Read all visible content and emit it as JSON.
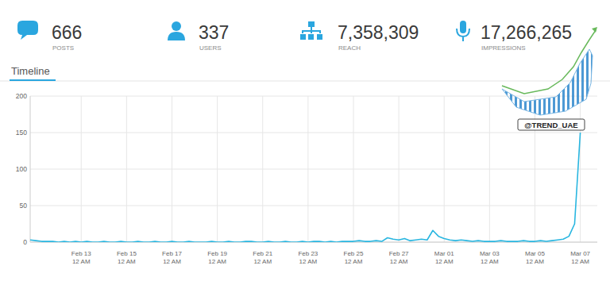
{
  "header": {
    "stats": [
      {
        "value": "666",
        "label": "POSTS"
      },
      {
        "value": "337",
        "label": "USERS"
      },
      {
        "value": "7,358,309",
        "label": "REACH"
      },
      {
        "value": "17,266,265",
        "label": "IMPRESSIONS"
      }
    ],
    "tab": "Timeline"
  },
  "chart_data": {
    "type": "line",
    "color": "#29b6e0",
    "categories": [
      null,
      null,
      null,
      null,
      null,
      null,
      null,
      null,
      null,
      "Feb 13 12 AM",
      null,
      null,
      null,
      null,
      null,
      null,
      null,
      "Feb 15 12 AM",
      null,
      null,
      null,
      null,
      null,
      null,
      null,
      "Feb 17 12 AM",
      null,
      null,
      null,
      null,
      null,
      null,
      null,
      "Feb 19 12 AM",
      null,
      null,
      null,
      null,
      null,
      null,
      null,
      "Feb 21 12 AM",
      null,
      null,
      null,
      null,
      null,
      null,
      null,
      "Feb 23 12 AM",
      null,
      null,
      null,
      null,
      null,
      null,
      null,
      "Feb 25 12 AM",
      null,
      null,
      null,
      null,
      null,
      null,
      null,
      "Feb 27 12 AM",
      null,
      null,
      null,
      null,
      null,
      null,
      null,
      "Mar 01 12 AM",
      null,
      null,
      null,
      null,
      null,
      null,
      null,
      "Mar 03 12 AM",
      null,
      null,
      null,
      null,
      null,
      null,
      null,
      "Mar 05 12 AM",
      null,
      null,
      null,
      null,
      null,
      null,
      null,
      "Mar 07 12 AM",
      null,
      null,
      null
    ],
    "values": [
      3,
      2,
      1,
      1,
      1,
      0,
      1,
      0,
      1,
      0,
      1,
      0,
      0,
      1,
      0,
      0,
      1,
      0,
      0,
      1,
      0,
      0,
      1,
      0,
      0,
      1,
      0,
      0,
      1,
      0,
      0,
      0,
      1,
      0,
      0,
      1,
      0,
      0,
      1,
      1,
      0,
      0,
      1,
      0,
      0,
      1,
      0,
      0,
      1,
      0,
      1,
      1,
      0,
      1,
      0,
      1,
      1,
      1,
      2,
      1,
      1,
      2,
      1,
      6,
      4,
      3,
      5,
      2,
      3,
      4,
      3,
      16,
      8,
      5,
      3,
      2,
      3,
      2,
      1,
      2,
      1,
      1,
      1,
      2,
      1,
      1,
      1,
      2,
      1,
      1,
      2,
      1,
      2,
      3,
      4,
      8,
      25,
      150,
      null,
      null,
      null
    ],
    "ylim": [
      0,
      200
    ],
    "yticks": [
      0,
      50,
      100,
      150,
      200
    ],
    "grid": true,
    "annotations": [
      "@TREND_UAE"
    ]
  }
}
